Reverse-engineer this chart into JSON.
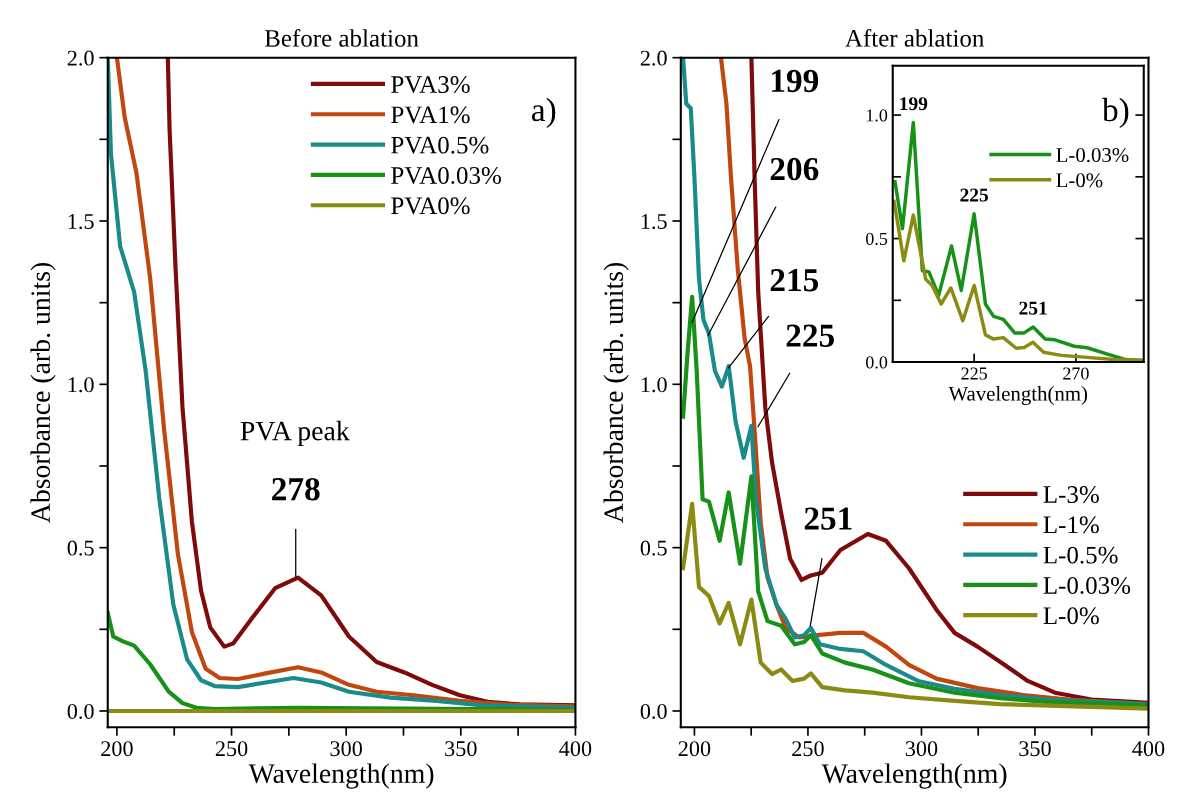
{
  "chart_data": [
    {
      "type": "line",
      "title": "Before ablation",
      "xlabel": "Wavelength(nm)",
      "ylabel": "Absorbance (arb. units)",
      "xlim": [
        196,
        400
      ],
      "ylim": [
        -0.05,
        2.0
      ],
      "xticks": [
        200,
        {
          "value": 225,
          "label": null
        },
        250,
        {
          "value": 275,
          "label": null
        },
        300,
        {
          "value": 325,
          "label": null
        },
        350,
        {
          "value": 375,
          "label": null
        },
        400
      ],
      "yticks": [
        {
          "value": 0,
          "label": "0.0"
        },
        {
          "value": 0.25,
          "label": null
        },
        {
          "value": 0.5,
          "label": "0.5"
        },
        {
          "value": 0.75,
          "label": null
        },
        {
          "value": 1,
          "label": "1.0"
        },
        {
          "value": 1.25,
          "label": null
        },
        {
          "value": 1.5,
          "label": "1.5"
        },
        {
          "value": 1.75,
          "label": null
        },
        {
          "value": 2,
          "label": "2.0"
        }
      ],
      "grid": false,
      "legend": "top right",
      "annotations": [
        "a)",
        "PVA peak",
        {
          "text": "278",
          "x": 278,
          "y": 0.41
        }
      ],
      "series": [
        {
          "name": "PVA3%",
          "color": "#7f0a0a",
          "x": [
            222.2,
            223,
            225.6,
            228.6,
            232.7,
            236.7,
            240.7,
            246.8,
            250.8,
            258.9,
            269,
            279,
            289.1,
            301.2,
            313.3,
            325.4,
            337.5,
            349.6,
            361.7,
            375.8,
            400
          ],
          "values": [
            2.0,
            1.775,
            1.353,
            0.93,
            0.58,
            0.368,
            0.256,
            0.197,
            0.207,
            0.284,
            0.376,
            0.408,
            0.354,
            0.228,
            0.15,
            0.118,
            0.08,
            0.048,
            0.028,
            0.02,
            0.017
          ]
        },
        {
          "name": "PVA1%",
          "color": "#c0470f",
          "x": [
            200,
            203.4,
            208.5,
            214.5,
            220.6,
            226.6,
            232.7,
            238.7,
            244.8,
            252.8,
            264.9,
            279,
            289.1,
            301.2,
            313.3,
            329.4,
            349.6,
            369.8,
            400
          ],
          "values": [
            2.0,
            1.817,
            1.648,
            1.325,
            0.86,
            0.48,
            0.242,
            0.129,
            0.101,
            0.098,
            0.115,
            0.134,
            0.118,
            0.08,
            0.059,
            0.048,
            0.031,
            0.02,
            0.014
          ]
        },
        {
          "name": "PVA0.5%",
          "color": "#1a8a8a",
          "x": [
            196,
            197.4,
            201.4,
            207.5,
            212.5,
            218.5,
            224.6,
            230.6,
            236.7,
            242.7,
            252.8,
            264.9,
            277,
            289.1,
            301.2,
            319.4,
            339.5,
            359.7,
            400
          ],
          "values": [
            2.0,
            1.705,
            1.423,
            1.283,
            1.044,
            0.65,
            0.326,
            0.158,
            0.094,
            0.076,
            0.073,
            0.087,
            0.101,
            0.087,
            0.059,
            0.041,
            0.031,
            0.017,
            0.01
          ]
        },
        {
          "name": "PVA0.03%",
          "color": "#179117",
          "x": [
            196,
            198.4,
            202.4,
            207.5,
            214.5,
            222.6,
            228.6,
            234.7,
            242.7,
            279,
            400
          ],
          "values": [
            0.3,
            0.228,
            0.214,
            0.2,
            0.143,
            0.059,
            0.024,
            0.01,
            0.006,
            0.01,
            0.003
          ]
        },
        {
          "name": "PVA0%",
          "color": "#8b8b14",
          "x": [
            196,
            400
          ],
          "values": [
            0.0,
            0.0
          ]
        }
      ]
    },
    {
      "type": "line",
      "title": "After ablation",
      "xlabel": "Wavelength(nm)",
      "ylabel": "Absorbance (arb. units)",
      "xlim": [
        194,
        400
      ],
      "ylim": [
        -0.05,
        2.0
      ],
      "xticks": [
        200,
        {
          "value": 225,
          "label": null
        },
        250,
        {
          "value": 275,
          "label": null
        },
        300,
        {
          "value": 325,
          "label": null
        },
        350,
        {
          "value": 375,
          "label": null
        },
        400
      ],
      "yticks": [
        {
          "value": 0,
          "label": "0.0"
        },
        {
          "value": 0.25,
          "label": null
        },
        {
          "value": 0.5,
          "label": "0.5"
        },
        {
          "value": 0.75,
          "label": null
        },
        {
          "value": 1,
          "label": "1.0"
        },
        {
          "value": 1.25,
          "label": null
        },
        {
          "value": 1.5,
          "label": "1.5"
        },
        {
          "value": 1.75,
          "label": null
        },
        {
          "value": 2,
          "label": "2.0"
        }
      ],
      "grid": false,
      "legend": "right",
      "annotations": [
        "b)",
        {
          "text": "199",
          "x": 199,
          "y": 1.19
        },
        {
          "text": "206",
          "x": 206,
          "y": 1.15
        },
        {
          "text": "215",
          "x": 215,
          "y": 1.05
        },
        {
          "text": "225",
          "x": 228,
          "y": 0.87
        },
        {
          "text": "251",
          "x": 251,
          "y": 0.26
        }
      ],
      "series": [
        {
          "name": "L-3%",
          "color": "#7f0a0a",
          "x": [
            225.1,
            226.5,
            228.1,
            231.2,
            234.2,
            238.2,
            242.2,
            247.2,
            251.3,
            256.3,
            264.3,
            276.4,
            284.4,
            294.5,
            306.6,
            314.6,
            324.7,
            336.7,
            346.8,
            358.8,
            374.9,
            400
          ],
          "values": [
            2.0,
            1.634,
            1.282,
            0.93,
            0.76,
            0.606,
            0.465,
            0.401,
            0.415,
            0.423,
            0.493,
            0.542,
            0.521,
            0.437,
            0.31,
            0.239,
            0.197,
            0.141,
            0.092,
            0.056,
            0.035,
            0.025
          ]
        },
        {
          "name": "L-1%",
          "color": "#c0470f",
          "x": [
            211.7,
            214.1,
            216.1,
            219.1,
            222.1,
            224.5,
            226.5,
            229.2,
            232.2,
            236.2,
            240.2,
            246.2,
            254.3,
            264.3,
            274.4,
            284.4,
            294.5,
            306.6,
            324.7,
            344.8,
            364.9,
            400
          ],
          "values": [
            2.0,
            1.859,
            1.634,
            1.352,
            1.141,
            1.056,
            0.859,
            0.577,
            0.408,
            0.324,
            0.254,
            0.225,
            0.232,
            0.239,
            0.239,
            0.197,
            0.141,
            0.099,
            0.07,
            0.049,
            0.035,
            0.021
          ]
        },
        {
          "name": "L-0.5%",
          "color": "#1a8a8a",
          "x": [
            195,
            196.4,
            198.4,
            200,
            202,
            204,
            206.4,
            209,
            212.1,
            215.1,
            218.1,
            221.7,
            225.1,
            227.1,
            231.2,
            236.2,
            240.2,
            244.2,
            248.3,
            251.3,
            255.3,
            264.3,
            274.4,
            284.4,
            298.5,
            314.6,
            334.7,
            354.8,
            400
          ],
          "values": [
            2.0,
            1.859,
            1.845,
            1.634,
            1.324,
            1.197,
            1.155,
            1.042,
            0.993,
            1.056,
            0.887,
            0.775,
            0.873,
            0.648,
            0.437,
            0.324,
            0.282,
            0.225,
            0.232,
            0.254,
            0.204,
            0.19,
            0.183,
            0.141,
            0.092,
            0.068,
            0.049,
            0.035,
            0.021
          ]
        },
        {
          "name": "L-0.03%",
          "color": "#179117",
          "x": [
            195,
            197,
            199,
            201,
            203.6,
            206.4,
            211.1,
            215.1,
            220.1,
            225.1,
            228.1,
            232.2,
            238.2,
            244.2,
            248.3,
            251.3,
            256.3,
            266.3,
            278.4,
            294.5,
            314.6,
            334.7,
            354.8,
            400
          ],
          "values": [
            0.901,
            1.099,
            1.268,
            1.042,
            0.648,
            0.641,
            0.521,
            0.669,
            0.451,
            0.718,
            0.366,
            0.275,
            0.261,
            0.204,
            0.211,
            0.232,
            0.176,
            0.148,
            0.127,
            0.085,
            0.056,
            0.039,
            0.028,
            0.017
          ]
        },
        {
          "name": "L-0%",
          "color": "#8b8b14",
          "x": [
            195,
            199,
            202,
            206.4,
            211.1,
            215.1,
            220.1,
            225.1,
            229.2,
            234.2,
            238.2,
            243.2,
            248.3,
            251.3,
            256.3,
            266.3,
            278.4,
            294.5,
            314.6,
            334.7,
            400
          ],
          "values": [
            0.437,
            0.634,
            0.38,
            0.352,
            0.268,
            0.331,
            0.204,
            0.341,
            0.148,
            0.113,
            0.127,
            0.092,
            0.099,
            0.115,
            0.073,
            0.063,
            0.056,
            0.042,
            0.031,
            0.021,
            0.007
          ]
        }
      ]
    },
    {
      "type": "line",
      "xlabel": "Wavelength(nm)",
      "xlim": [
        189,
        300
      ],
      "ylim": [
        0,
        1.2
      ],
      "xticks": [
        {
          "value": 225,
          "label": "225"
        },
        {
          "value": 270,
          "label": "270"
        }
      ],
      "yticks": [
        {
          "value": 0,
          "label": "0.0"
        },
        {
          "value": 0.25,
          "label": null
        },
        {
          "value": 0.5,
          "label": "0.5"
        },
        {
          "value": 0.75,
          "label": null
        },
        {
          "value": 1,
          "label": "1.0"
        }
      ],
      "grid": false,
      "legend": "right",
      "annotations": [
        {
          "text": "199",
          "x": 198.1,
          "y": 0.97
        },
        {
          "text": "225",
          "x": 225,
          "y": 0.6
        },
        {
          "text": "251",
          "x": 251.1,
          "y": 0.142
        }
      ],
      "series": [
        {
          "name": "L-0.03%",
          "color": "#179117",
          "x": [
            190,
            193.3,
            198.1,
            202.1,
            205,
            209.3,
            215,
            219.3,
            225,
            230,
            233.6,
            237.9,
            242.9,
            247.1,
            251.1,
            256.4,
            260.7,
            269.3,
            275,
            283.6,
            292.1,
            300
          ],
          "values": [
            0.73,
            0.54,
            0.97,
            0.37,
            0.365,
            0.27,
            0.47,
            0.29,
            0.6,
            0.235,
            0.185,
            0.173,
            0.118,
            0.118,
            0.142,
            0.093,
            0.09,
            0.064,
            0.058,
            0.033,
            0.01,
            0.006
          ]
        },
        {
          "name": "L-0%",
          "color": "#8b8b14",
          "x": [
            189.6,
            193.9,
            198.1,
            203.6,
            206.4,
            210.4,
            214.7,
            220,
            225,
            230,
            233.6,
            237.9,
            243.6,
            247.1,
            251,
            255.7,
            263.6,
            275,
            286.4,
            300
          ],
          "values": [
            0.65,
            0.41,
            0.595,
            0.335,
            0.31,
            0.235,
            0.3,
            0.167,
            0.31,
            0.11,
            0.093,
            0.099,
            0.056,
            0.059,
            0.08,
            0.04,
            0.027,
            0.019,
            0.01,
            0.006
          ]
        }
      ]
    }
  ]
}
